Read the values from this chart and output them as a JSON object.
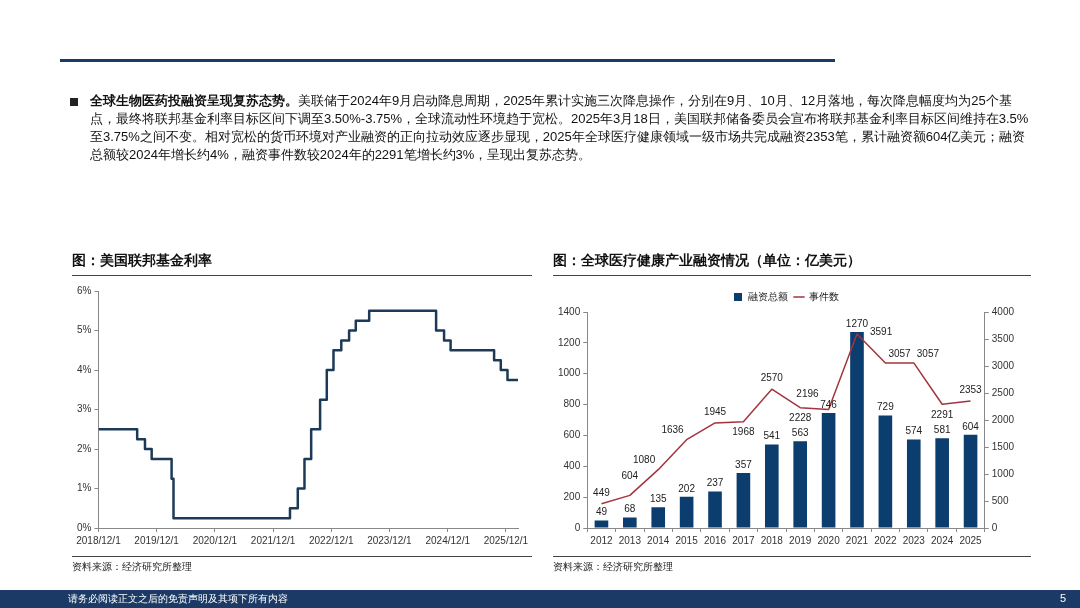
{
  "chart_data": [
    {
      "type": "other",
      "title": "全球生物医药投融资呈现复苏态势。",
      "subtitle": "美联储于2024年9月启动降息周期，2025年累计实施三次降息操作，分别在9月、10月、12月落地，每次降息幅度均为25个基点，最终将联邦基金利率目标区间下调至3.50%-3.75%，全球流动性环境趋于宽松。2025年3月18日，美国联邦储备委员会宣布将联邦基金利率目标区间维持在3.5%至3.75%之间不变。相对宽松的货币环境对产业融资的正向拉动效应逐步显现，2025年全球医疗健康领域一级市场共完成融资2353笔，累计融资额604亿美元；融资总额较2024年增长约4%，融资事件数较2024年的2291笔增长约3%，呈现出复苏态势。",
      "annotations": [
        "请务必阅读正文之后的免责声明及其项下所有内容",
        "5"
      ]
    },
    {
      "type": "step",
      "title": "图：美国联邦基金利率",
      "color": "#1c3a57",
      "x": [
        "2018-12-01",
        "2019-08-01",
        "2019-09-19",
        "2019-10-31",
        "2020-03-04",
        "2020-03-16",
        "2022-03-17",
        "2022-05-05",
        "2022-06-16",
        "2022-07-28",
        "2022-09-22",
        "2022-11-03",
        "2022-12-15",
        "2023-02-02",
        "2023-03-23",
        "2023-05-04",
        "2023-07-27",
        "2024-09-19",
        "2024-11-08",
        "2024-12-19",
        "2025-09-18",
        "2025-10-30",
        "2025-12-11",
        "2026-02-15"
      ],
      "values": [
        2.5,
        2.25,
        2.0,
        1.75,
        1.25,
        0.25,
        0.5,
        1.0,
        1.75,
        2.5,
        3.25,
        4.0,
        4.5,
        4.75,
        5.0,
        5.25,
        5.5,
        5.0,
        4.75,
        4.5,
        4.25,
        4.0,
        3.75,
        3.75
      ],
      "xlim": [
        "2018-12-01",
        "2026-02-15"
      ],
      "xticks": [
        {
          "value": "2018-12-01",
          "label": "2018/12/1"
        },
        {
          "value": "2019-12-01",
          "label": "2019/12/1"
        },
        {
          "value": "2020-12-01",
          "label": "2020/12/1"
        },
        {
          "value": "2021-12-01",
          "label": "2021/12/1"
        },
        {
          "value": "2022-12-01",
          "label": "2022/12/1"
        },
        {
          "value": "2023-12-01",
          "label": "2023/12/1"
        },
        {
          "value": "2024-12-01",
          "label": "2024/12/1"
        },
        {
          "value": "2025-12-01",
          "label": "2025/12/1"
        }
      ],
      "ylim": [
        0,
        6
      ],
      "yticks": [
        {
          "value": 0,
          "label": "0%"
        },
        {
          "value": 1,
          "label": "1%"
        },
        {
          "value": 2,
          "label": "2%"
        },
        {
          "value": 3,
          "label": "3%"
        },
        {
          "value": 4,
          "label": "4%"
        },
        {
          "value": 5,
          "label": "5%"
        },
        {
          "value": 6,
          "label": "6%"
        }
      ],
      "grid": false,
      "legend": false,
      "annotations": [
        "资料来源：经济研究所整理"
      ]
    },
    {
      "type": "bar",
      "title": "图：全球医疗健康产业融资情况（单位：亿美元）",
      "categories": [
        "2012",
        "2013",
        "2014",
        "2015",
        "2016",
        "2017",
        "2018",
        "2019",
        "2020",
        "2021",
        "2022",
        "2023",
        "2024",
        "2025"
      ],
      "series": [
        {
          "name": "融资总额",
          "color": "#0b3d6e",
          "values": [
            49,
            68,
            135,
            202,
            237,
            357,
            541,
            563,
            746,
            1270,
            729,
            574,
            581,
            604
          ]
        },
        {
          "name": "事件数",
          "type": "line",
          "axis": "y2",
          "color": "#a3343f",
          "values": [
            449,
            604,
            1080,
            1636,
            1945,
            1968,
            2570,
            2228,
            2196,
            3591,
            3057,
            3057,
            2291,
            2353
          ]
        }
      ],
      "ylim": [
        0,
        1400
      ],
      "yticks": [
        0,
        200,
        400,
        600,
        800,
        1000,
        1200,
        1400
      ],
      "y2lim": [
        0,
        4000
      ],
      "y2ticks": [
        0,
        500,
        1000,
        1500,
        2000,
        2500,
        3000,
        3500,
        4000
      ],
      "grid": false,
      "legend": "top",
      "data_labels": true,
      "annotations": [
        "资料来源：经济研究所整理"
      ]
    }
  ]
}
